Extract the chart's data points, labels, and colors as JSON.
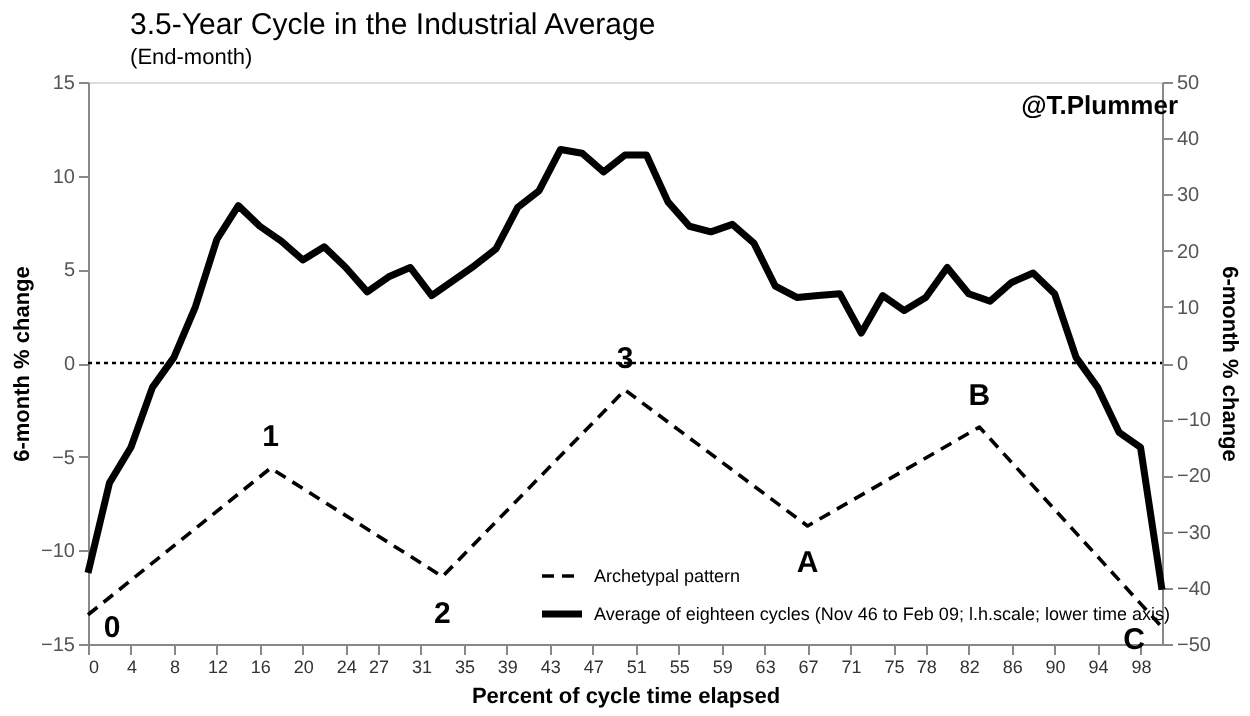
{
  "chart_data": {
    "type": "line",
    "title": "3.5-Year Cycle in the Industrial Average",
    "subtitle": "(End-month)",
    "xlabel": "Percent of cycle time elapsed",
    "ylabel": "6-month % change",
    "y2label": "6-month % change",
    "xlim": [
      0,
      100
    ],
    "xticks": [
      0,
      4,
      8,
      12,
      16,
      20,
      24,
      27,
      31,
      35,
      39,
      43,
      47,
      51,
      55,
      59,
      63,
      67,
      71,
      75,
      78,
      82,
      86,
      90,
      94,
      98
    ],
    "ylim": [
      -15,
      15
    ],
    "yticks": [
      -15,
      -10,
      -5,
      0,
      5,
      10,
      15
    ],
    "y2lim": [
      -50,
      50
    ],
    "y2ticks": [
      -50,
      -40,
      -30,
      -20,
      -10,
      0,
      10,
      20,
      30,
      40,
      50
    ],
    "grid": false,
    "legend": "bottom right",
    "series": [
      {
        "name": "Archetypal pattern",
        "color": "#000000",
        "axis": "y2",
        "line_style": "dashed",
        "x": [
          0,
          17,
          33,
          50,
          67,
          83,
          100
        ],
        "values": [
          -44.8,
          -18.7,
          -38,
          -4.8,
          -29,
          -11.4,
          -47
        ]
      },
      {
        "name": "Average of eighteen cycles (Nov 46 to Feb 09; l.h.scale; lower time axis)",
        "color": "#000000",
        "line_style": "solid",
        "x": [
          0,
          2,
          4,
          6,
          8,
          10,
          12,
          14,
          16,
          18,
          20,
          22,
          24,
          26,
          28,
          30,
          32,
          34,
          36,
          38,
          40,
          42,
          44,
          46,
          48,
          50,
          52,
          54,
          56,
          58,
          60,
          62,
          64,
          66,
          68,
          70,
          72,
          74,
          76,
          78,
          80,
          82,
          84,
          86,
          88,
          90,
          92,
          94,
          96,
          98,
          100
        ],
        "values": [
          -11.2,
          -6.4,
          -4.5,
          -1.3,
          0.3,
          3.0,
          6.6,
          8.4,
          7.3,
          6.5,
          5.5,
          6.2,
          5.1,
          3.8,
          4.6,
          5.1,
          3.6,
          4.4,
          5.2,
          6.1,
          8.3,
          9.2,
          11.4,
          11.2,
          10.2,
          11.1,
          11.1,
          8.6,
          7.3,
          7.0,
          7.4,
          6.4,
          4.1,
          3.5,
          3.6,
          3.7,
          1.6,
          3.6,
          2.8,
          3.5,
          5.1,
          3.7,
          3.3,
          4.3,
          4.8,
          3.7,
          0.3,
          -1.3,
          -3.7,
          -4.5,
          -12.1
        ]
      }
    ],
    "ref_lines": [
      {
        "axis": "y",
        "value": 0,
        "line_style": "dotted",
        "color": "#000000"
      }
    ],
    "annotations": [
      "@T.Plummer",
      "0",
      "1",
      "2",
      "3",
      "A",
      "B",
      "C"
    ]
  }
}
